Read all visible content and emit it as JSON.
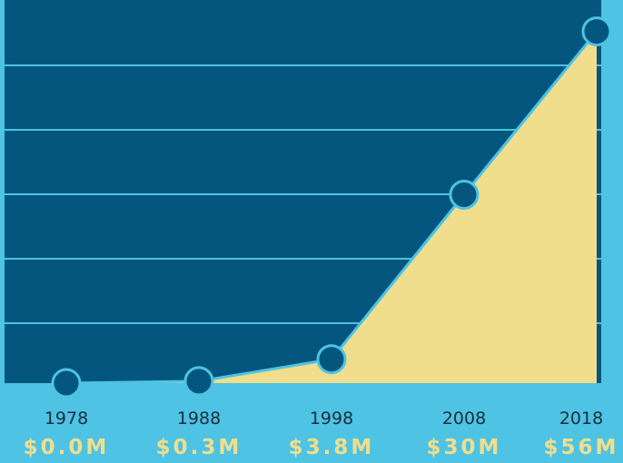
{
  "chart_data": {
    "type": "area",
    "categories": [
      "1978",
      "1988",
      "1998",
      "2008",
      "2018"
    ],
    "values": [
      0,
      0.3,
      3.8,
      30,
      56
    ],
    "value_labels": [
      "$0.0M",
      "$0.3M",
      "$3.8M",
      "$30M",
      "$56M"
    ],
    "color": "#f0de8c",
    "ylim": [
      0,
      61
    ]
  }
}
